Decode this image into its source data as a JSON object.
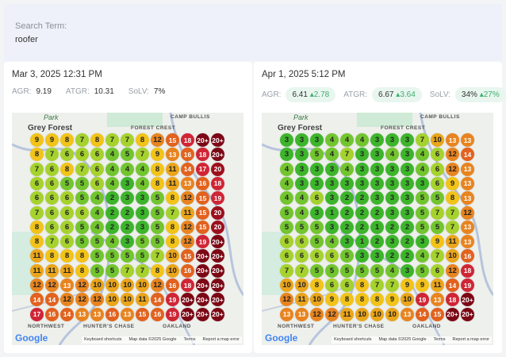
{
  "search": {
    "label": "Search Term:",
    "value": "roofer"
  },
  "map_labels": {
    "park": "Park",
    "forest_crest": "FOREST CREST",
    "camp_bullis": "CAMP BULLIS",
    "grey_forest": "Grey Forest",
    "hunters_chase": "HUNTER'S CHASE",
    "northwest": "NORTHWEST",
    "oakland": "OAKLAND",
    "google": "Google",
    "keyboard": "Keyboard shortcuts",
    "mapdata": "Map data ©2025 Google",
    "terms": "Terms",
    "report": "Report a map error"
  },
  "reports": [
    {
      "date": "Mar 3, 2025 12:31 PM",
      "agr_label": "AGR:",
      "agr": "9.19",
      "atgr_label": "ATGR:",
      "atgr": "10.31",
      "solv_label": "SoLV:",
      "solv": "7%",
      "grid": [
        [
          "9",
          "9",
          "8",
          "7",
          "8",
          "7",
          "7",
          "8",
          "12",
          "15",
          "18",
          "20+",
          "20+"
        ],
        [
          "8",
          "7",
          "6",
          "6",
          "6",
          "4",
          "5",
          "7",
          "9",
          "13",
          "16",
          "18",
          "20+"
        ],
        [
          "7",
          "6",
          "8",
          "7",
          "6",
          "4",
          "4",
          "4",
          "8",
          "11",
          "14",
          "17",
          "20"
        ],
        [
          "6",
          "6",
          "5",
          "5",
          "6",
          "4",
          "3",
          "4",
          "8",
          "11",
          "13",
          "16",
          "18"
        ],
        [
          "6",
          "6",
          "6",
          "5",
          "4",
          "2",
          "3",
          "3",
          "5",
          "8",
          "12",
          "15",
          "19"
        ],
        [
          "7",
          "6",
          "6",
          "6",
          "4",
          "2",
          "2",
          "3",
          "5",
          "7",
          "11",
          "15",
          "20"
        ],
        [
          "8",
          "6",
          "6",
          "5",
          "4",
          "2",
          "2",
          "3",
          "5",
          "8",
          "12",
          "15",
          "20"
        ],
        [
          "8",
          "7",
          "6",
          "5",
          "5",
          "4",
          "3",
          "5",
          "5",
          "8",
          "12",
          "19",
          "20+"
        ],
        [
          "11",
          "8",
          "8",
          "8",
          "5",
          "5",
          "5",
          "5",
          "7",
          "10",
          "15",
          "20+",
          "20+"
        ],
        [
          "11",
          "11",
          "11",
          "8",
          "5",
          "5",
          "7",
          "7",
          "8",
          "10",
          "16",
          "20+",
          "20+"
        ],
        [
          "12",
          "12",
          "13",
          "12",
          "10",
          "10",
          "10",
          "10",
          "12",
          "16",
          "18",
          "20+",
          "20+"
        ],
        [
          "14",
          "14",
          "12",
          "12",
          "12",
          "10",
          "10",
          "11",
          "14",
          "19",
          "20+",
          "20+",
          "20+"
        ],
        [
          "17",
          "16",
          "14",
          "13",
          "13",
          "16",
          "13",
          "15",
          "16",
          "19",
          "20+",
          "20+",
          "20+"
        ]
      ]
    },
    {
      "date": "Apr 1, 2025 5:12 PM",
      "agr_label": "AGR:",
      "agr": "6.41",
      "agr_delta": "2.78",
      "atgr_label": "ATGR:",
      "atgr": "6.67",
      "atgr_delta": "3.64",
      "solv_label": "SoLV:",
      "solv": "34%",
      "solv_delta": "27%",
      "grid": [
        [
          "3",
          "3",
          "3",
          "4",
          "4",
          "4",
          "3",
          "3",
          "3",
          "7",
          "10",
          "13",
          "13"
        ],
        [
          "3",
          "3",
          "5",
          "4",
          "7",
          "3",
          "3",
          "4",
          "3",
          "4",
          "6",
          "12",
          "14"
        ],
        [
          "4",
          "3",
          "3",
          "3",
          "4",
          "3",
          "3",
          "3",
          "3",
          "4",
          "6",
          "12",
          "13"
        ],
        [
          "4",
          "3",
          "3",
          "3",
          "3",
          "3",
          "3",
          "3",
          "3",
          "3",
          "6",
          "9",
          "13"
        ],
        [
          "4",
          "4",
          "6",
          "3",
          "2",
          "2",
          "3",
          "3",
          "3",
          "5",
          "5",
          "8",
          "13"
        ],
        [
          "5",
          "4",
          "3",
          "1",
          "2",
          "2",
          "2",
          "3",
          "3",
          "5",
          "7",
          "7",
          "12"
        ],
        [
          "5",
          "5",
          "5",
          "3",
          "2",
          "2",
          "1",
          "2",
          "2",
          "5",
          "5",
          "7",
          "13"
        ],
        [
          "6",
          "6",
          "5",
          "4",
          "3",
          "1",
          "2",
          "3",
          "2",
          "3",
          "9",
          "11",
          "13"
        ],
        [
          "6",
          "6",
          "6",
          "6",
          "5",
          "3",
          "3",
          "2",
          "2",
          "4",
          "7",
          "10",
          "16"
        ],
        [
          "7",
          "7",
          "5",
          "5",
          "5",
          "5",
          "5",
          "4",
          "3",
          "5",
          "6",
          "12",
          "18"
        ],
        [
          "10",
          "10",
          "8",
          "6",
          "6",
          "8",
          "7",
          "7",
          "9",
          "9",
          "11",
          "14",
          "19"
        ],
        [
          "12",
          "11",
          "10",
          "9",
          "8",
          "8",
          "8",
          "9",
          "10",
          "19",
          "13",
          "18",
          "20+"
        ],
        [
          "13",
          "13",
          "12",
          "12",
          "11",
          "10",
          "10",
          "10",
          "13",
          "14",
          "15",
          "20+",
          "20+"
        ]
      ]
    }
  ],
  "delta_icon": "arrow-up-icon",
  "rank_colors": {
    "1-3": "#3db52b",
    "4-5": "#72c52e",
    "6-7": "#a5d22d",
    "8-9": "#f2c318",
    "10-11": "#eaa51a",
    "12-13": "#e8841f",
    "14-16": "#e2621e",
    "17-19": "#d02535",
    "20": "#9c0f1c",
    "20+": "#7c0715"
  }
}
